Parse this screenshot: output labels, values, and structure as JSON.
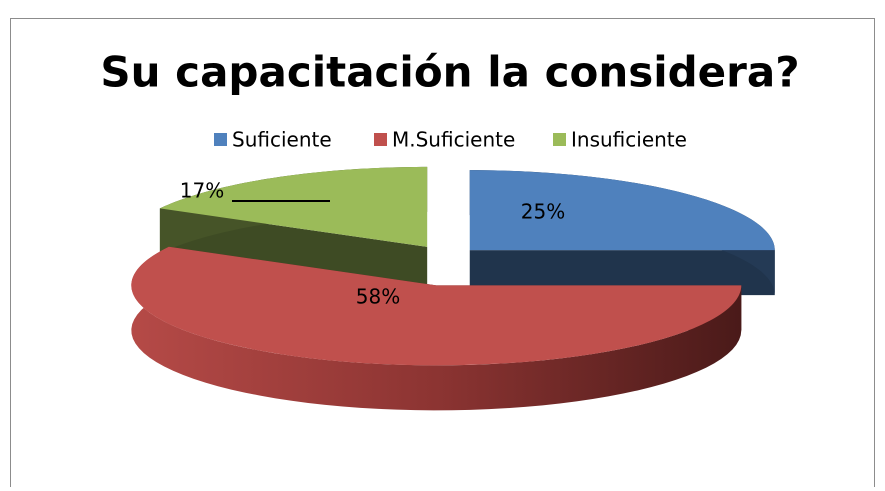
{
  "chart_data": {
    "type": "pie3d",
    "title": "Su capacitación la considera?",
    "categories": [
      "Suficiente",
      "M.Suficiente",
      "Insuficiente"
    ],
    "values": [
      25,
      58,
      17
    ],
    "value_labels": [
      "25%",
      "58%",
      "17%"
    ],
    "colors": [
      "#4f81bd",
      "#c0504d",
      "#9bbb59"
    ],
    "legend": "top"
  }
}
